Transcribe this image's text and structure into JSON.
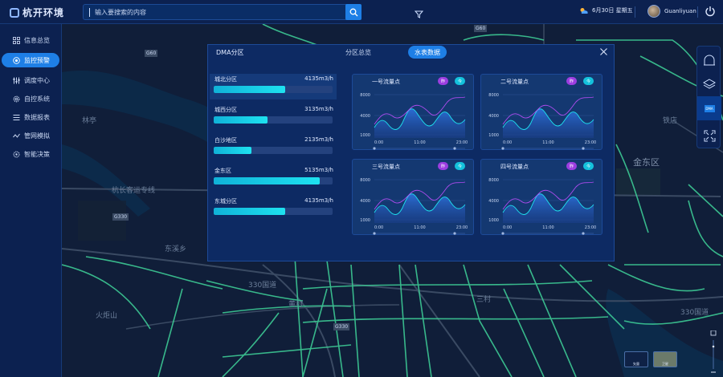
{
  "header": {
    "logo_text": "杭开环境",
    "search_placeholder": "输入要搜索的内容",
    "date_text": "6月30日 星期五",
    "username": "Guanliyuan"
  },
  "sidebar": {
    "items": [
      {
        "label": "信息总览",
        "icon": "grid-icon",
        "active": false
      },
      {
        "label": "监控预警",
        "icon": "target-icon",
        "active": true
      },
      {
        "label": "调度中心",
        "icon": "sliders-icon",
        "active": false
      },
      {
        "label": "自控系统",
        "icon": "gear-icon",
        "active": false
      },
      {
        "label": "数据报表",
        "icon": "list-icon",
        "active": false
      },
      {
        "label": "管网模拟",
        "icon": "pipe-icon",
        "active": false
      },
      {
        "label": "智能决策",
        "icon": "brain-gear-icon",
        "active": false
      }
    ]
  },
  "map": {
    "labels": [
      "林亭",
      "杭长客运专线",
      "东溪乡",
      "330国道",
      "黄村",
      "火炬山",
      "金东区",
      "铁店",
      "三村",
      "G330",
      "G60",
      "330国道"
    ],
    "shields": [
      "G60",
      "G330",
      "G330",
      "G60"
    ]
  },
  "rail": {
    "dma_label": "DMA"
  },
  "modal": {
    "title": "DMA分区",
    "tabs": [
      {
        "label": "分区总览",
        "active": false
      },
      {
        "label": "水表数据",
        "active": true
      }
    ],
    "zones": [
      {
        "name": "城北分区",
        "value": "4135m3/h",
        "fraction": 0.6,
        "highlight": true
      },
      {
        "name": "城西分区",
        "value": "3135m3/h",
        "fraction": 0.45,
        "highlight": false
      },
      {
        "name": "白沙地区",
        "value": "2135m3/h",
        "fraction": 0.32,
        "highlight": false
      },
      {
        "name": "金东区",
        "value": "5135m3/h",
        "fraction": 0.89,
        "highlight": false
      },
      {
        "name": "东城分区",
        "value": "4135m3/h",
        "fraction": 0.6,
        "highlight": false
      }
    ],
    "pill_yesterday": "昨",
    "pill_today": "今",
    "cards": [
      {
        "title": "一号流量点"
      },
      {
        "title": "二号流量点"
      },
      {
        "title": "三号流量点"
      },
      {
        "title": "四号流量点"
      }
    ],
    "y_ticks": [
      "8000",
      "4000",
      "1000"
    ],
    "x_ticks": [
      "0:00",
      "11:00",
      "23:00"
    ]
  },
  "basemap": {
    "vector_label": "矢量",
    "satellite_label": "卫星"
  },
  "colors": {
    "accent": "#1e7fe6",
    "panel": "#0d2a63",
    "bar": "#1ee2f0",
    "series_today": "#1ee2f0",
    "series_yesterday": "#b04cf0"
  }
}
